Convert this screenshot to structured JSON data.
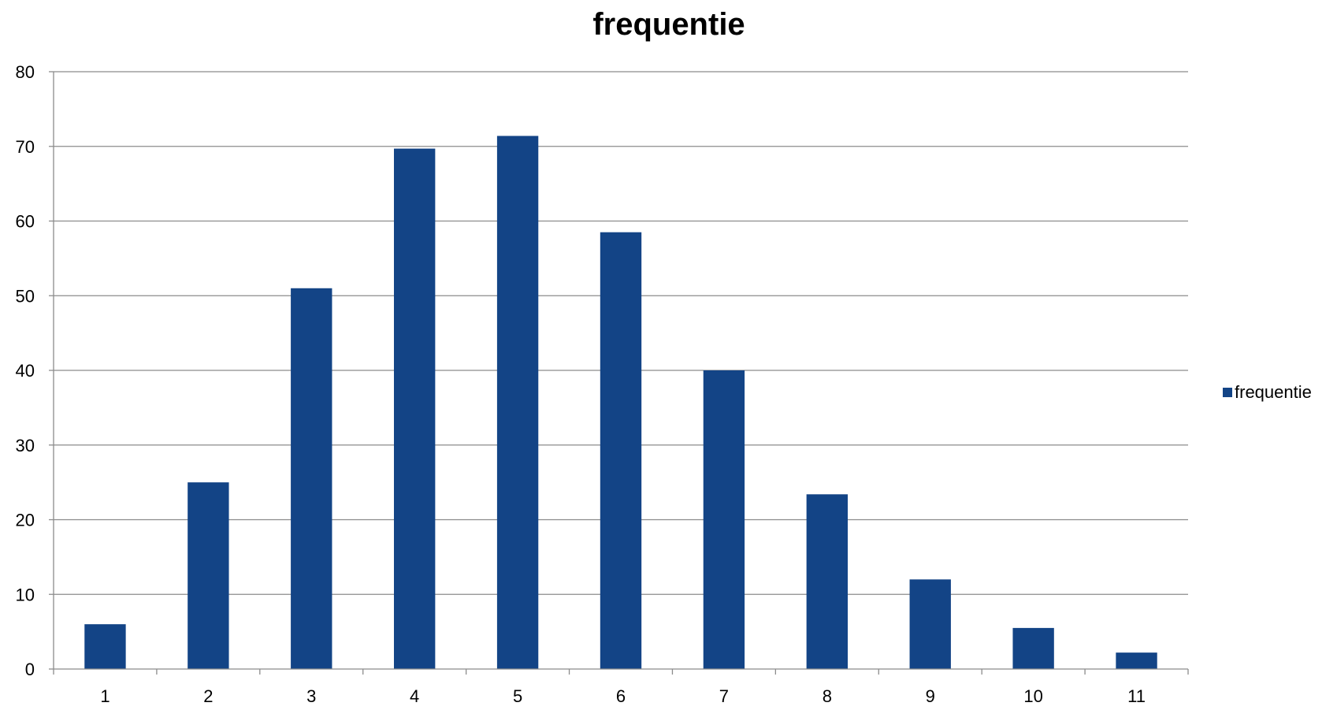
{
  "chart_data": {
    "type": "bar",
    "title": "frequentie",
    "xlabel": "",
    "ylabel": "",
    "categories": [
      "1",
      "2",
      "3",
      "4",
      "5",
      "6",
      "7",
      "8",
      "9",
      "10",
      "11"
    ],
    "series": [
      {
        "name": "frequentie",
        "values": [
          6,
          25,
          51,
          69.7,
          71.4,
          58.5,
          40,
          23.4,
          12,
          5.5,
          2.2
        ],
        "color": "#134486"
      }
    ],
    "ylim": [
      0,
      80
    ],
    "yticks": [
      "0",
      "10",
      "20",
      "30",
      "40",
      "50",
      "60",
      "70",
      "80"
    ],
    "grid": true,
    "legend_position": "right",
    "colors": {
      "bar": "#134486",
      "gridline": "#8c8c8c",
      "axis": "#8c8c8c"
    }
  }
}
